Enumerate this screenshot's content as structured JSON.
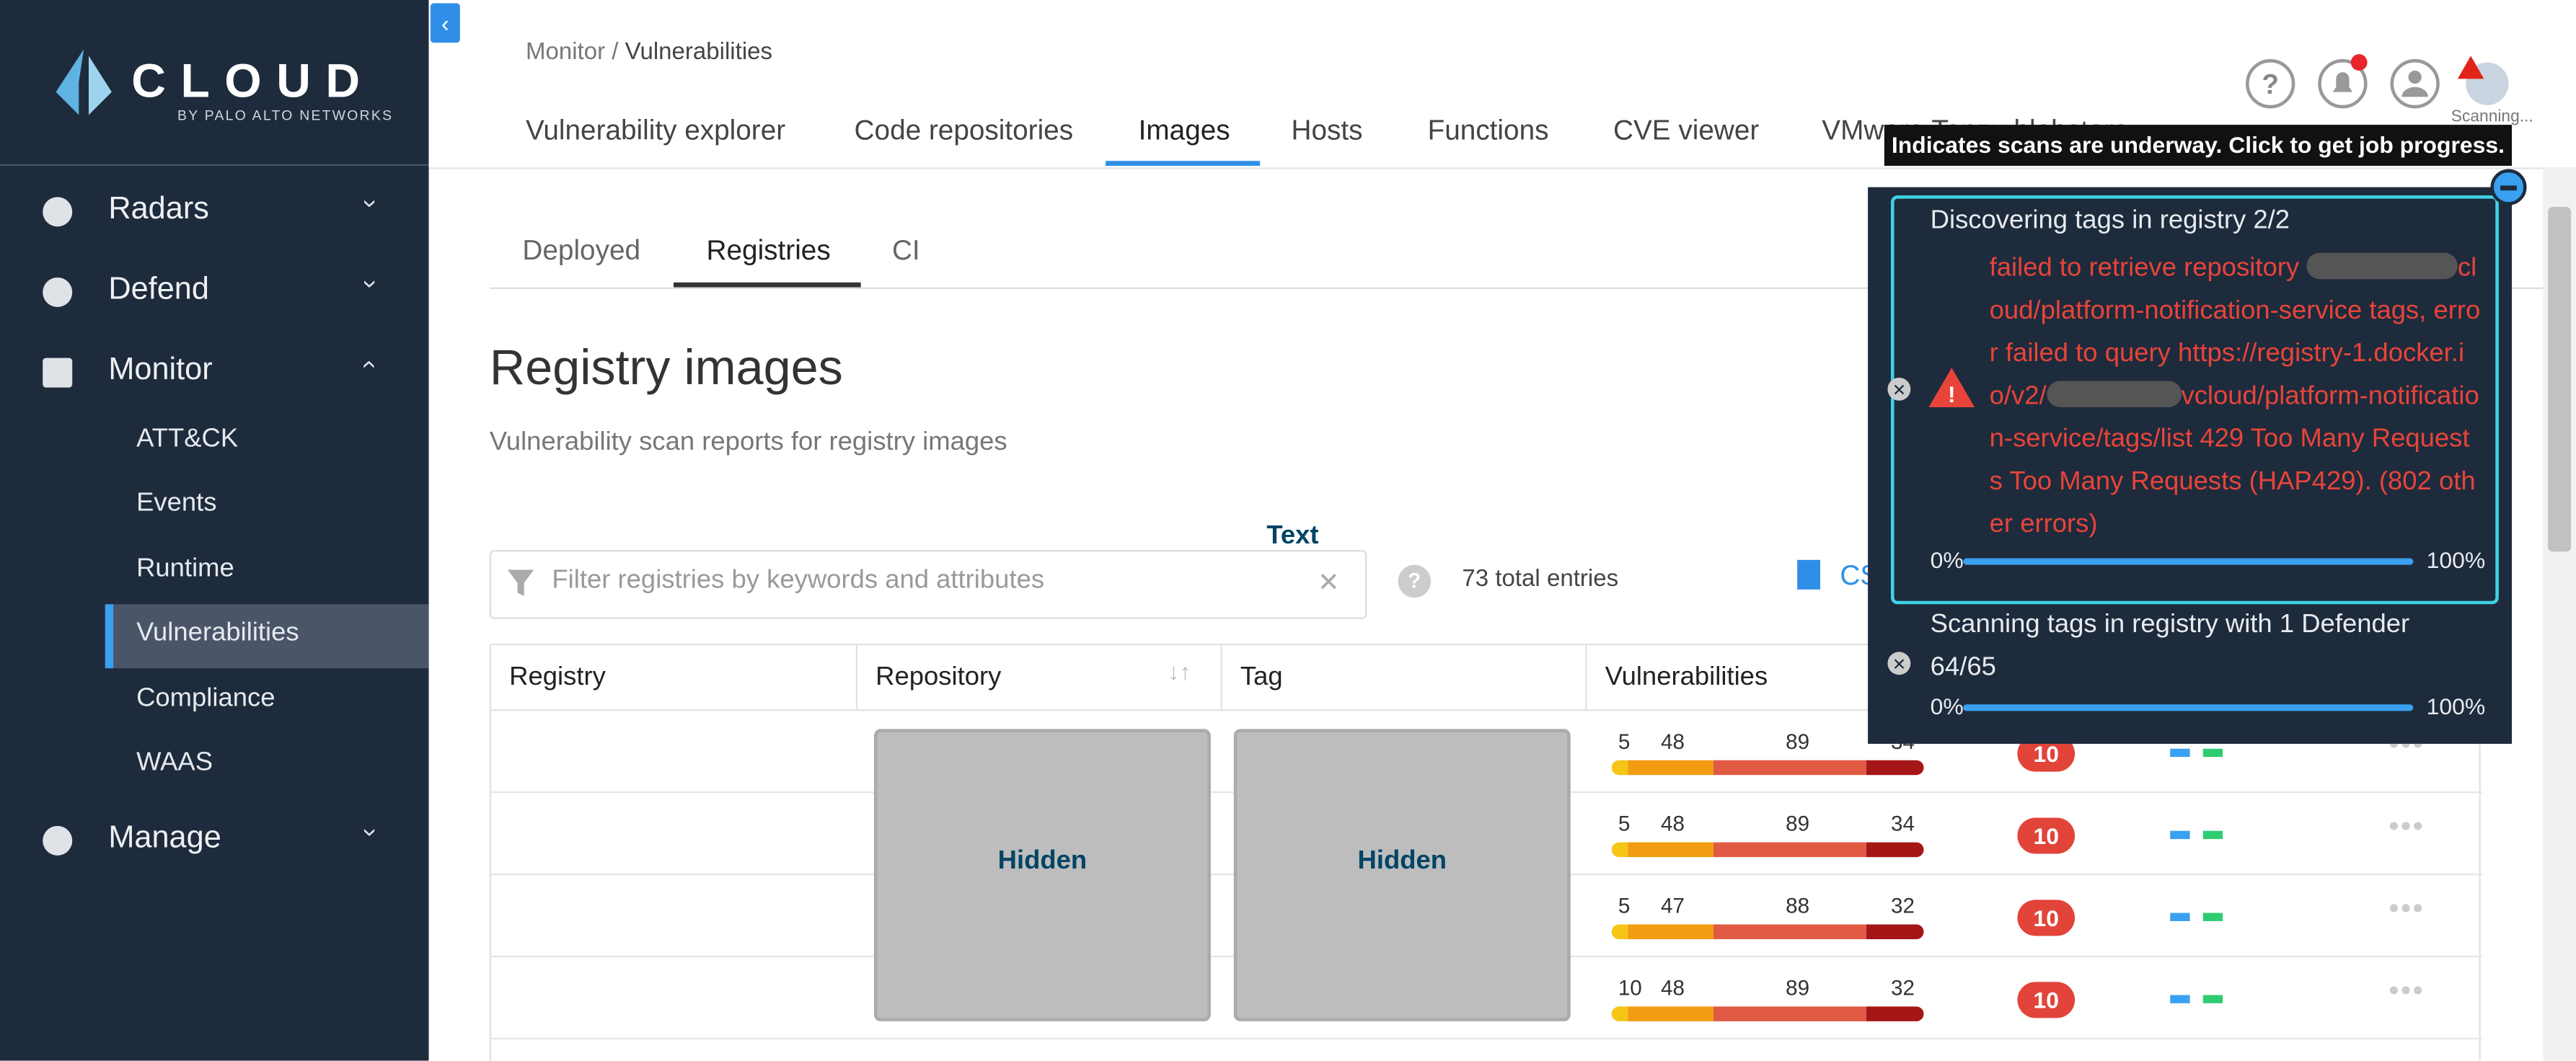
{
  "sidebar": {
    "brand": "CLOUD",
    "brand_sub": "BY PALO ALTO NETWORKS",
    "nav": [
      {
        "label": "Radars"
      },
      {
        "label": "Defend"
      },
      {
        "label": "Monitor",
        "children": [
          "ATT&CK",
          "Events",
          "Runtime",
          "Vulnerabilities",
          "Compliance",
          "WAAS"
        ]
      },
      {
        "label": "Manage"
      }
    ]
  },
  "header": {
    "breadcrumb": {
      "parent": "Monitor / ",
      "current": "Vulnerabilities"
    },
    "tabs": [
      "Vulnerability explorer",
      "Code repositories",
      "Images",
      "Hosts",
      "Functions",
      "CVE viewer",
      "VMware Tanzu blobstore"
    ],
    "scan_label": "Scanning...",
    "tooltip": "Indicates scans are underway. Click to get job progress."
  },
  "content": {
    "sub_tabs": [
      "Deployed",
      "Registries",
      "CI"
    ],
    "title": "Registry images",
    "subtitle": "Vulnerability scan reports for registry images",
    "filter_placeholder": "Filter registries by keywords and attributes",
    "annotation": "Text",
    "total": "73 total entries",
    "export": "CSV"
  },
  "table": {
    "columns": [
      "Registry",
      "Repository",
      "Tag",
      "Vulnerabilities"
    ],
    "hidden_label": "Hidden",
    "rows": [
      {
        "vulns": [
          5,
          48,
          89,
          34
        ],
        "risk": "10"
      },
      {
        "vulns": [
          5,
          48,
          89,
          34
        ],
        "risk": "10"
      },
      {
        "vulns": [
          5,
          47,
          88,
          32
        ],
        "risk": "10"
      },
      {
        "vulns": [
          10,
          48,
          89,
          32
        ],
        "risk": "10"
      }
    ]
  },
  "jobs": [
    {
      "title": "Discovering tags in registry 2/2",
      "error": [
        "failed to retrieve repository ",
        "cloud/platform-notification-service tags, error failed to query https://registry-1.docker.io/v2/",
        "vcloud/platform-notification-service/tags/list 429 Too Many Requests Too Many Requests (HAP429). (802 other errors)"
      ],
      "start": "0%",
      "end": "100%"
    },
    {
      "title": "Scanning tags in registry with 1 Defender 64/65",
      "start": "0%",
      "end": "100%"
    }
  ]
}
